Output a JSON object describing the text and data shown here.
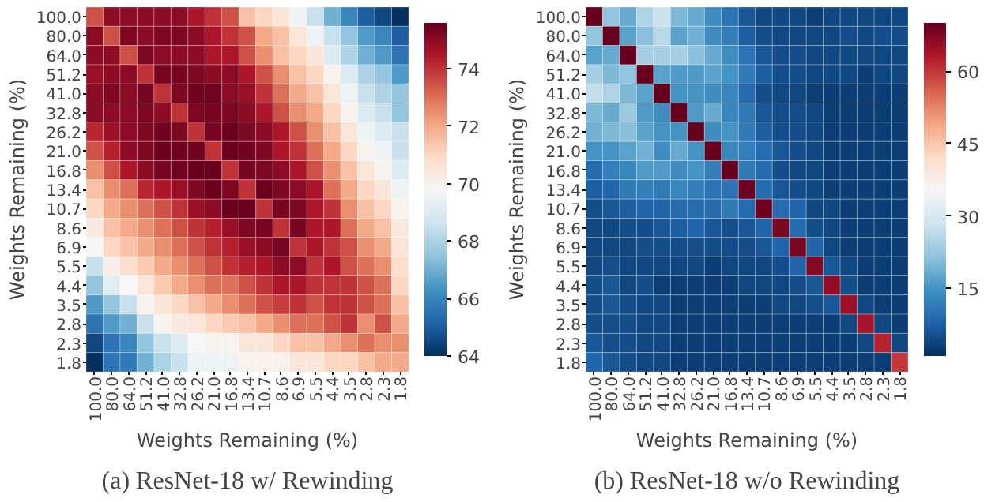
{
  "chart_data": [
    {
      "type": "heatmap",
      "title": "(a) ResNet-18 w/ Rewinding",
      "xlabel": "Weights Remaining (%)",
      "ylabel": "Weights Remaining (%)",
      "categories": [
        "100.0",
        "80.0",
        "64.0",
        "51.2",
        "41.0",
        "32.8",
        "26.2",
        "21.0",
        "16.8",
        "13.4",
        "10.7",
        "8.6",
        "6.9",
        "5.5",
        "4.4",
        "3.5",
        "2.8",
        "2.3",
        "1.8"
      ],
      "y_categories": [
        "100.0",
        "80.0",
        "64.0",
        "51.2",
        "41.0",
        "32.8",
        "26.2",
        "21.0",
        "16.8",
        "13.4",
        "10.7",
        "8.6",
        "6.9",
        "5.5",
        "4.4",
        "3.5",
        "2.8",
        "2.3",
        "1.8"
      ],
      "clim": [
        64,
        75.6
      ],
      "cticks": [
        64,
        66,
        68,
        70,
        72,
        74
      ],
      "cells": [
        [
          73.5,
          75,
          75,
          75,
          75,
          75,
          74.5,
          74,
          73.5,
          71.5,
          71,
          70.5,
          69.5,
          68.5,
          67,
          66,
          65,
          64.5,
          64
        ],
        [
          75,
          73.5,
          75.2,
          75,
          75.2,
          75.2,
          75,
          74.5,
          74,
          73.5,
          72,
          71.5,
          70.5,
          69.5,
          68.5,
          67.5,
          66.5,
          66,
          65
        ],
        [
          75,
          75,
          73.5,
          75.2,
          75,
          75,
          75,
          74.5,
          74.5,
          73.5,
          72.5,
          71.5,
          71,
          70.5,
          69,
          68,
          67,
          66.5,
          65.5
        ],
        [
          74.8,
          75,
          75,
          74,
          75.3,
          75.3,
          75.2,
          75,
          75,
          74.5,
          73.5,
          72.5,
          71.5,
          71,
          70,
          69,
          68,
          67.5,
          66.5
        ],
        [
          75,
          75.2,
          75,
          75.3,
          74,
          75.2,
          75.4,
          75.4,
          75,
          74.8,
          74,
          73,
          72,
          71.5,
          70.5,
          69.5,
          68.5,
          68,
          67.5
        ],
        [
          75,
          75,
          75,
          75.2,
          75,
          74,
          75.2,
          75.3,
          75.2,
          75,
          74.5,
          73.5,
          72.5,
          72,
          71,
          70,
          69,
          68.5,
          67.5
        ],
        [
          74.2,
          74.8,
          75,
          75.2,
          75.4,
          75.2,
          74,
          75.3,
          75.5,
          75.2,
          75,
          74.5,
          73.5,
          72.5,
          71.5,
          70.5,
          69.5,
          69,
          68.5
        ],
        [
          73.5,
          74.3,
          75,
          75.2,
          75.5,
          75.4,
          75.4,
          74,
          75.5,
          75.4,
          75.2,
          74.5,
          74,
          73,
          72,
          71,
          70,
          69.5,
          68.5
        ],
        [
          72.5,
          73.5,
          74.5,
          75,
          75.3,
          75.4,
          75.5,
          75.5,
          74,
          75.3,
          75.2,
          75,
          74.5,
          73.5,
          72.5,
          71.5,
          70.5,
          70,
          69
        ],
        [
          71.5,
          72.5,
          73,
          74.2,
          74.5,
          74.8,
          75.2,
          75.5,
          75.2,
          74,
          75.5,
          75.2,
          75,
          74.5,
          73,
          72,
          71,
          70.5,
          69.5
        ],
        [
          71,
          72,
          72.5,
          73,
          73.5,
          74,
          74.8,
          75,
          75.5,
          75.5,
          74,
          75.3,
          75.2,
          74.5,
          74,
          72.5,
          71.5,
          71,
          70
        ],
        [
          70.3,
          71.5,
          72,
          72.5,
          73,
          73.5,
          74,
          74.3,
          74.8,
          75.2,
          75.3,
          74,
          75.3,
          74.5,
          74.5,
          73,
          72,
          71.5,
          70.3
        ],
        [
          69.8,
          71,
          71.5,
          72,
          72.5,
          73,
          73.5,
          74,
          74.3,
          74.8,
          75,
          75.3,
          74,
          74.5,
          74,
          73.5,
          72.5,
          72,
          70.5
        ],
        [
          68.5,
          70.2,
          70.8,
          71.3,
          72,
          72.5,
          73,
          73.5,
          74,
          74.3,
          74.5,
          75,
          75,
          74,
          74.5,
          73.5,
          73,
          72.5,
          70.8
        ],
        [
          67.5,
          69.2,
          69.8,
          70.5,
          71.3,
          72,
          72.5,
          73,
          73,
          73.5,
          74,
          74.5,
          74.5,
          74,
          74,
          74,
          73.5,
          73,
          71
        ],
        [
          66.5,
          67.5,
          68.5,
          70,
          70.5,
          71,
          71.5,
          72,
          72.5,
          73,
          73.5,
          73.8,
          74,
          73.5,
          74,
          74,
          73.5,
          73,
          71.5
        ],
        [
          65.5,
          66.5,
          67,
          68.5,
          70,
          70.3,
          70.5,
          71,
          71.3,
          71.5,
          72,
          72.5,
          73,
          73,
          73.5,
          74,
          72.5,
          73.5,
          72
        ],
        [
          64.5,
          65.5,
          66,
          67.5,
          68.5,
          69,
          69.8,
          70,
          70,
          70.5,
          70.5,
          71,
          71.5,
          71.5,
          72,
          72.5,
          73,
          72.5,
          72.5
        ],
        [
          64,
          65.5,
          65.7,
          67,
          68,
          68.5,
          69.5,
          69.5,
          69.5,
          70,
          70,
          70,
          70.5,
          70.5,
          71,
          71,
          71.5,
          72,
          72
        ]
      ]
    },
    {
      "type": "heatmap",
      "title": "(b) ResNet-18 w/o Rewinding",
      "xlabel": "Weights Remaining (%)",
      "ylabel": "Weights Remaining (%)",
      "categories": [
        "100.0",
        "80.0",
        "64.0",
        "51.2",
        "41.0",
        "32.8",
        "26.2",
        "21.0",
        "16.8",
        "13.4",
        "10.7",
        "8.6",
        "6.9",
        "5.5",
        "4.4",
        "3.5",
        "2.8",
        "2.3",
        "1.8"
      ],
      "y_categories": [
        "100.0",
        "80.0",
        "64.0",
        "51.2",
        "41.0",
        "32.8",
        "26.2",
        "21.0",
        "16.8",
        "13.4",
        "10.7",
        "8.6",
        "6.9",
        "5.5",
        "4.4",
        "3.5",
        "2.8",
        "2.3",
        "1.8"
      ],
      "clim": [
        1,
        70
      ],
      "cticks": [
        15,
        30,
        45,
        60
      ],
      "cells": [
        [
          70,
          22,
          18,
          25,
          28,
          20,
          18,
          14,
          10,
          6,
          4,
          4,
          4,
          3,
          4,
          4,
          4,
          4,
          4
        ],
        [
          22,
          70,
          17,
          21,
          26,
          17,
          19,
          14,
          12,
          7,
          5,
          4,
          4,
          4,
          4,
          5,
          4,
          5,
          5
        ],
        [
          17,
          18,
          70,
          24,
          24,
          24,
          21,
          18,
          14,
          10,
          6,
          5,
          5,
          4,
          4,
          4,
          4,
          4,
          4
        ],
        [
          24,
          20,
          22,
          70,
          17,
          16,
          16,
          17,
          15,
          11,
          7,
          5,
          5,
          4,
          4,
          4,
          3,
          4,
          4
        ],
        [
          27,
          25,
          20,
          17,
          70,
          15,
          15,
          14,
          13,
          9,
          5,
          4,
          4,
          3,
          3,
          3,
          3,
          3,
          3
        ],
        [
          20,
          18,
          23,
          16,
          14,
          70,
          16,
          18,
          13,
          11,
          6,
          5,
          5,
          4,
          3,
          3,
          3,
          3,
          3
        ],
        [
          19,
          20,
          21,
          17,
          15,
          15,
          70,
          14,
          15,
          11,
          7,
          5,
          5,
          4,
          3,
          3,
          3,
          3,
          3
        ],
        [
          15,
          15,
          17,
          19,
          14,
          18,
          15,
          70,
          13,
          12,
          9,
          6,
          5,
          4,
          3,
          3,
          3,
          3,
          3
        ],
        [
          9,
          12,
          13,
          16,
          16,
          14,
          15,
          12,
          70,
          11,
          9,
          5,
          4,
          4,
          3,
          3,
          3,
          3,
          3
        ],
        [
          7,
          8,
          11,
          12,
          11,
          13,
          12,
          10,
          10,
          69,
          9,
          6,
          5,
          4,
          3,
          3,
          3,
          3,
          3
        ],
        [
          5,
          6,
          7,
          8,
          8,
          9,
          9,
          9,
          11,
          9,
          69,
          9,
          8,
          4,
          4,
          3,
          3,
          3,
          3
        ],
        [
          4,
          4,
          5,
          5,
          6,
          7,
          8,
          6,
          5,
          6,
          8,
          68,
          9,
          5,
          4,
          3,
          3,
          3,
          3
        ],
        [
          4,
          4,
          4,
          5,
          5,
          5,
          5,
          5,
          5,
          5,
          6,
          8,
          68,
          8,
          4,
          3,
          3,
          3,
          3
        ],
        [
          4,
          5,
          4,
          4,
          4,
          4,
          4,
          3,
          4,
          4,
          4,
          5,
          8,
          67,
          6,
          4,
          3,
          3,
          3
        ],
        [
          5,
          6,
          4,
          5,
          3,
          3,
          3,
          3,
          3,
          4,
          4,
          4,
          5,
          6,
          66,
          5,
          3,
          3,
          3
        ],
        [
          5,
          6,
          5,
          4,
          4,
          3,
          3,
          3,
          3,
          3,
          3,
          4,
          4,
          5,
          6,
          65,
          4,
          3,
          3
        ],
        [
          5,
          5,
          5,
          4,
          4,
          3,
          3,
          3,
          3,
          3,
          3,
          3,
          3,
          3,
          3,
          4,
          64,
          4,
          3
        ],
        [
          6,
          5,
          5,
          4,
          4,
          3,
          3,
          3,
          3,
          3,
          3,
          3,
          3,
          3,
          3,
          3,
          4,
          62,
          4
        ],
        [
          8,
          6,
          5,
          4,
          4,
          3,
          3,
          3,
          3,
          3,
          3,
          3,
          3,
          3,
          3,
          3,
          3,
          3,
          60
        ]
      ]
    }
  ]
}
